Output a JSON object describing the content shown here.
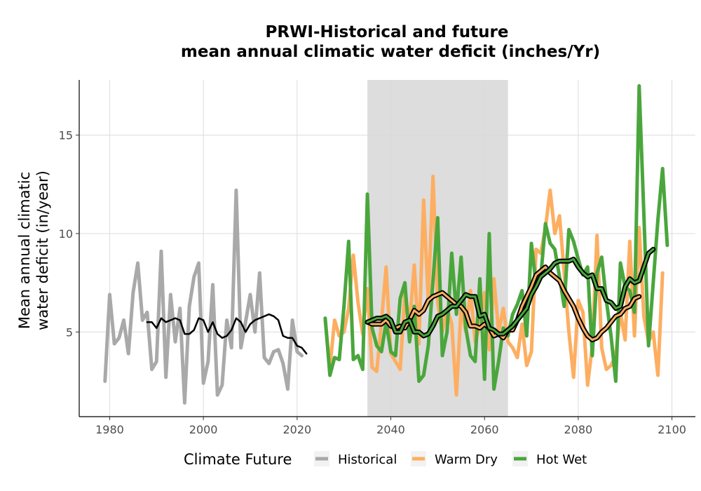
{
  "chart_data": {
    "type": "line",
    "title_line1": "PRWI-Historical and future",
    "title_line2": "mean annual climatic water deficit (inches/Yr)",
    "xlabel": "",
    "ylabel_line1": "Mean annual climatic",
    "ylabel_line2": "water deficit (in/year)",
    "xlim": [
      1973.5,
      2105
    ],
    "ylim": [
      0.7,
      17.8
    ],
    "x_ticks": [
      1980,
      2000,
      2020,
      2040,
      2060,
      2080,
      2100
    ],
    "y_ticks": [
      5,
      10,
      15
    ],
    "grid": true,
    "reference_period": [
      2035,
      2065
    ],
    "legend": {
      "title": "Climate Future",
      "position": "bottom",
      "entries": [
        {
          "label": "Historical",
          "color": "#a9a9a9"
        },
        {
          "label": "Warm Dry",
          "color": "#fdae61"
        },
        {
          "label": "Hot Wet",
          "color": "#4aa63c"
        }
      ]
    },
    "series": [
      {
        "name": "Historical",
        "color": "#a9a9a9",
        "start_year": 1979,
        "values": [
          2.5,
          6.9,
          4.4,
          4.7,
          5.6,
          3.9,
          7.0,
          8.5,
          5.6,
          6.0,
          3.1,
          3.5,
          9.1,
          2.7,
          6.9,
          4.5,
          6.2,
          1.4,
          6.3,
          7.8,
          8.5,
          2.4,
          3.5,
          7.4,
          1.8,
          2.3,
          5.6,
          4.2,
          12.2,
          4.2,
          5.5,
          6.9,
          5.0,
          8.0,
          3.7,
          3.4,
          4.0,
          4.1,
          3.4,
          2.1,
          5.6,
          4.0,
          3.8
        ]
      },
      {
        "name": "Historical running mean",
        "color": "#000000",
        "start_year": 1988,
        "values": [
          5.5,
          5.5,
          5.2,
          5.7,
          5.5,
          5.6,
          5.7,
          5.6,
          4.9,
          4.9,
          5.1,
          5.7,
          5.6,
          5.0,
          5.5,
          4.9,
          4.7,
          4.8,
          5.1,
          5.7,
          5.5,
          5.0,
          5.4,
          5.6,
          5.7,
          5.8,
          5.9,
          5.8,
          5.6,
          4.8,
          4.7,
          4.7,
          4.3,
          4.2,
          3.9
        ]
      },
      {
        "name": "Warm Dry",
        "color": "#fdae61",
        "start_year": 2026,
        "values": [
          5.6,
          3.2,
          5.6,
          4.8,
          5.0,
          6.2,
          8.9,
          6.5,
          4.9,
          7.2,
          3.2,
          3.0,
          5.5,
          8.3,
          3.9,
          3.5,
          3.1,
          7.0,
          5.4,
          8.4,
          4.4,
          11.7,
          6.5,
          12.9,
          6.5,
          5.0,
          6.2,
          5.4,
          1.8,
          6.3,
          5.0,
          7.1,
          4.5,
          5.3,
          7.0,
          4.1,
          7.7,
          5.0,
          6.2,
          4.5,
          4.2,
          3.7,
          5.4,
          3.3,
          4.0,
          9.2,
          9.0,
          10.3,
          12.2,
          10.0,
          10.9,
          8.0,
          5.0,
          2.7,
          6.6,
          6.0,
          2.3,
          4.3,
          9.9,
          4.2,
          3.1,
          3.3,
          3.8,
          6.0,
          4.6,
          9.6,
          4.8,
          10.3,
          5.8,
          4.5,
          5.0,
          2.8,
          8.0
        ]
      },
      {
        "name": "Warm Dry running mean",
        "color": "#fdae61",
        "outline": "#000000",
        "start_year": 2035,
        "values": [
          5.5,
          5.4,
          5.4,
          5.4,
          5.6,
          5.3,
          5.2,
          5.3,
          5.2,
          5.6,
          6.1,
          5.9,
          6.1,
          6.6,
          6.8,
          6.9,
          7.0,
          6.8,
          6.6,
          6.4,
          6.3,
          6.0,
          5.3,
          5.3,
          5.2,
          5.4,
          5.2,
          4.8,
          4.9,
          4.7,
          5.1,
          5.1,
          5.6,
          6.3,
          6.8,
          7.3,
          7.9,
          8.1,
          8.3,
          8.0,
          7.8,
          7.6,
          7.1,
          6.7,
          6.3,
          5.7,
          5.2,
          4.8,
          4.6,
          4.7,
          5.0,
          5.2,
          5.5,
          5.8,
          5.9,
          6.2,
          6.3,
          6.7,
          6.8
        ]
      },
      {
        "name": "Hot Wet",
        "color": "#4aa63c",
        "start_year": 2026,
        "values": [
          5.7,
          2.8,
          3.7,
          3.6,
          6.3,
          9.6,
          3.6,
          3.8,
          3.1,
          12.0,
          5.2,
          4.3,
          4.0,
          5.5,
          4.0,
          3.8,
          6.7,
          7.5,
          4.5,
          6.3,
          2.5,
          2.8,
          4.3,
          7.6,
          10.8,
          3.8,
          5.0,
          9.0,
          5.9,
          8.8,
          5.2,
          3.8,
          3.5,
          7.7,
          2.6,
          10.0,
          2.1,
          3.5,
          5.2,
          4.8,
          5.9,
          6.4,
          7.1,
          4.8,
          9.5,
          7.4,
          7.8,
          10.5,
          9.5,
          9.2,
          7.8,
          6.3,
          10.2,
          9.6,
          8.7,
          7.9,
          8.3,
          3.8,
          8.0,
          8.8,
          6.6,
          4.8,
          2.5,
          8.5,
          7.3,
          7.1,
          6.0,
          17.5,
          11.0,
          4.3,
          7.5,
          10.7,
          13.3,
          9.4
        ]
      },
      {
        "name": "Hot Wet running mean",
        "color": "#4aa63c",
        "outline": "#000000",
        "start_year": 2035,
        "values": [
          5.5,
          5.6,
          5.7,
          5.7,
          5.8,
          5.6,
          5.0,
          5.0,
          5.5,
          5.6,
          5.0,
          5.0,
          4.8,
          4.9,
          5.3,
          5.8,
          5.9,
          6.1,
          6.3,
          6.3,
          6.6,
          6.9,
          6.8,
          6.8,
          5.8,
          5.9,
          5.2,
          5.1,
          4.9,
          4.9,
          5.1,
          5.3,
          5.6,
          5.9,
          6.2,
          6.9,
          7.3,
          7.8,
          8.0,
          8.2,
          8.5,
          8.6,
          8.6,
          8.6,
          8.7,
          8.3,
          8.0,
          7.8,
          7.9,
          7.2,
          7.2,
          6.6,
          6.5,
          6.2,
          6.3,
          7.3,
          7.7,
          7.5,
          7.6,
          8.3,
          9.0,
          9.2
        ]
      }
    ]
  }
}
